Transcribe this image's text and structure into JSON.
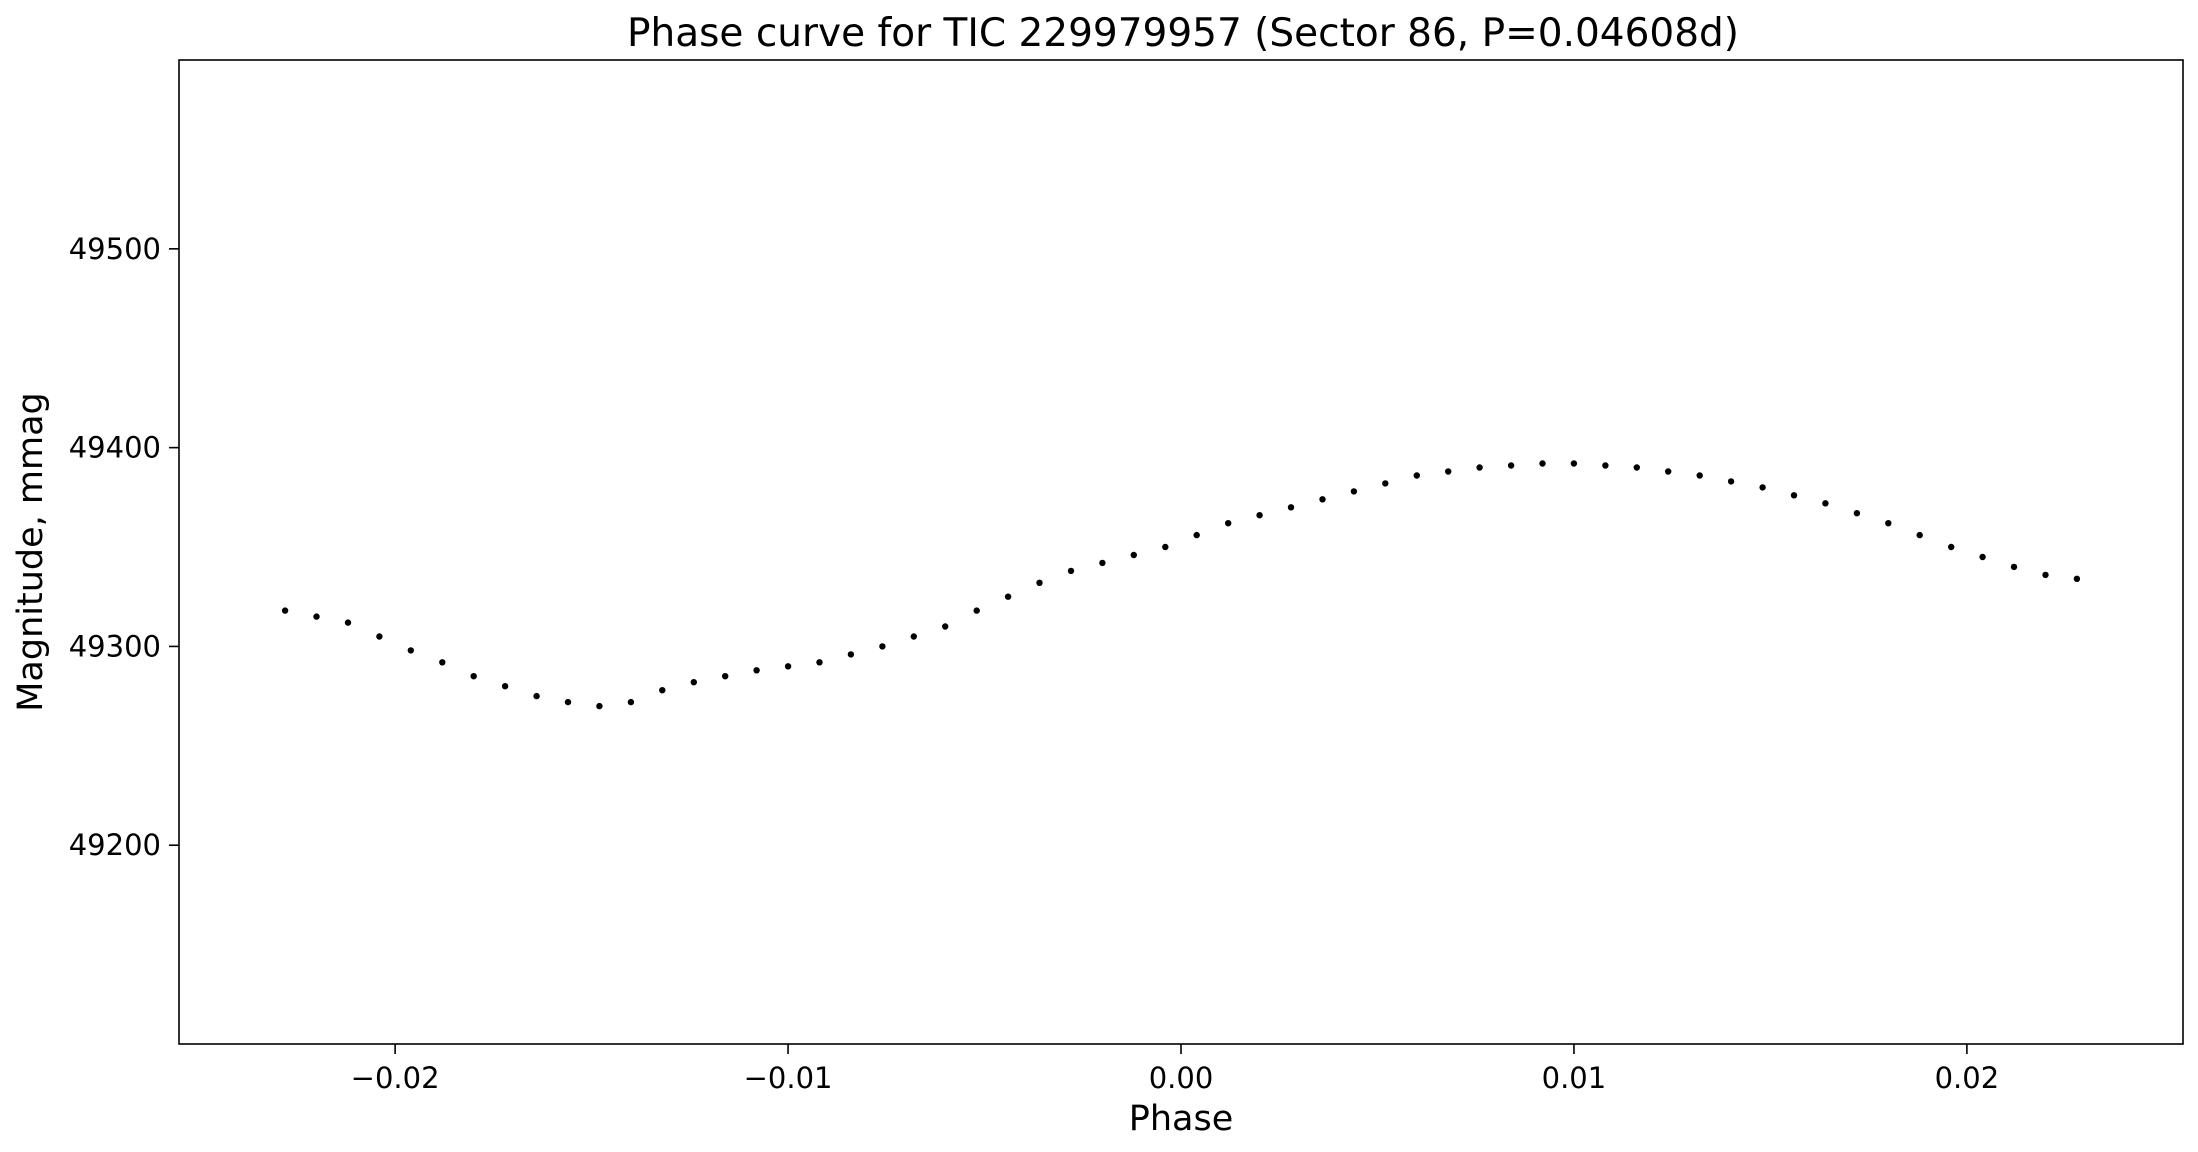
{
  "chart_data": {
    "type": "scatter",
    "title": "Phase curve for TIC 229979957 (Sector 86, P=0.04608d)",
    "xlabel": "Phase",
    "ylabel": "Magnitude, mmag",
    "xlim": [
      -0.0255,
      0.0255
    ],
    "ylim": [
      49100,
      49595
    ],
    "x_ticks": [
      -0.02,
      -0.01,
      0.0,
      0.01,
      0.02
    ],
    "x_tick_labels": [
      "−0.02",
      "−0.01",
      "0.00",
      "0.01",
      "0.02"
    ],
    "y_ticks": [
      49200,
      49300,
      49400,
      49500
    ],
    "y_tick_labels": [
      "49200",
      "49300",
      "49400",
      "49500"
    ],
    "grid": false,
    "legend": "none",
    "marker_color": "#000000",
    "series": [
      {
        "x": [
          -0.0228,
          -0.022,
          -0.0212,
          -0.0204,
          -0.0196,
          -0.0188,
          -0.018,
          -0.0172,
          -0.0164,
          -0.0156,
          -0.0148,
          -0.014,
          -0.0132,
          -0.0124,
          -0.0116,
          -0.0108,
          -0.01,
          -0.0092,
          -0.0084,
          -0.0076,
          -0.0068,
          -0.006,
          -0.0052,
          -0.0044,
          -0.0036,
          -0.0028,
          -0.002,
          -0.0012,
          -0.0004,
          0.0004,
          0.0012,
          0.002,
          0.0028,
          0.0036,
          0.0044,
          0.0052,
          0.006,
          0.0068,
          0.0076,
          0.0084,
          0.0092,
          0.01,
          0.0108,
          0.0116,
          0.0124,
          0.0132,
          0.014,
          0.0148,
          0.0156,
          0.0164,
          0.0172,
          0.018,
          0.0188,
          0.0196,
          0.0204,
          0.0212,
          0.022,
          0.0228
        ],
        "y": [
          49318,
          49315,
          49312,
          49305,
          49298,
          49292,
          49285,
          49280,
          49275,
          49272,
          49270,
          49272,
          49278,
          49282,
          49285,
          49288,
          49290,
          49292,
          49296,
          49300,
          49305,
          49310,
          49318,
          49325,
          49332,
          49338,
          49342,
          49346,
          49350,
          49356,
          49362,
          49366,
          49370,
          49374,
          49378,
          49382,
          49386,
          49388,
          49390,
          49391,
          49392,
          49392,
          49391,
          49390,
          49388,
          49386,
          49383,
          49380,
          49376,
          49372,
          49367,
          49362,
          49356,
          49350,
          49345,
          49340,
          49336,
          49334
        ]
      }
    ]
  }
}
